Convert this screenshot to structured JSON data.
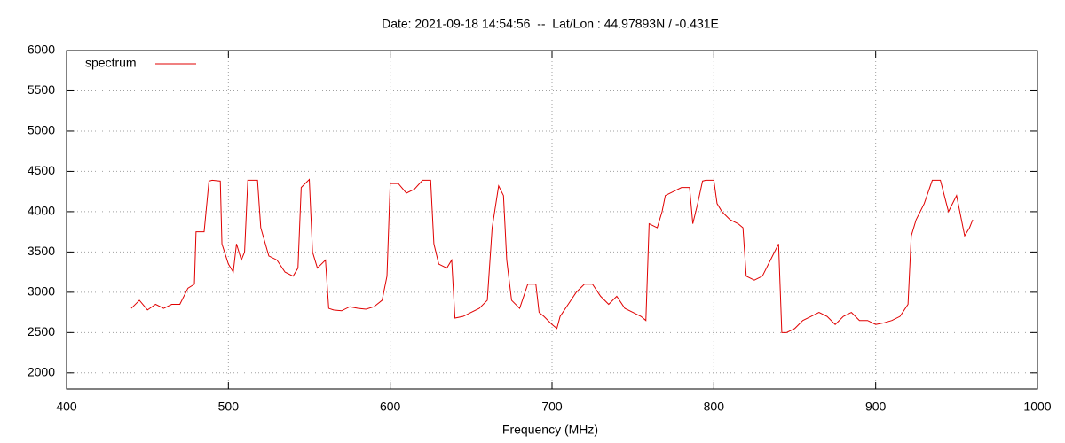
{
  "chart_data": {
    "type": "line",
    "title": "Date: 2021-09-18 14:54:56  --  Lat/Lon : 44.97893N / -0.431E",
    "xlabel": "Frequency (MHz)",
    "x": [
      440,
      445,
      450,
      455,
      460,
      465,
      470,
      475,
      479,
      480,
      485,
      488,
      490,
      495,
      496,
      500,
      503,
      505,
      508,
      510,
      512,
      515,
      518,
      520,
      525,
      530,
      535,
      540,
      543,
      545,
      550,
      552,
      555,
      560,
      562,
      565,
      570,
      575,
      580,
      585,
      590,
      595,
      598,
      600,
      605,
      610,
      615,
      620,
      625,
      627,
      630,
      635,
      638,
      640,
      645,
      650,
      655,
      660,
      663,
      667,
      670,
      672,
      675,
      680,
      685,
      690,
      692,
      695,
      700,
      703,
      705,
      710,
      715,
      720,
      725,
      730,
      735,
      740,
      745,
      750,
      755,
      758,
      760,
      765,
      768,
      770,
      775,
      780,
      785,
      787,
      790,
      793,
      795,
      800,
      802,
      805,
      810,
      815,
      818,
      820,
      825,
      830,
      835,
      840,
      842,
      845,
      850,
      855,
      860,
      865,
      870,
      875,
      880,
      885,
      890,
      895,
      900,
      905,
      910,
      915,
      920,
      922,
      925,
      930,
      935,
      940,
      945,
      950,
      955,
      958,
      960
    ],
    "series": [
      {
        "name": "spectrum",
        "color": "#e00000",
        "values": [
          2800,
          2900,
          2780,
          2850,
          2800,
          2850,
          2850,
          3050,
          3100,
          3750,
          3750,
          4380,
          4390,
          4380,
          3600,
          3350,
          3250,
          3600,
          3400,
          3500,
          4390,
          4390,
          4390,
          3800,
          3450,
          3400,
          3250,
          3200,
          3300,
          4300,
          4400,
          3500,
          3300,
          3400,
          2800,
          2780,
          2770,
          2820,
          2800,
          2790,
          2820,
          2900,
          3200,
          4350,
          4350,
          4230,
          4280,
          4390,
          4390,
          3600,
          3350,
          3300,
          3400,
          2680,
          2700,
          2750,
          2800,
          2900,
          3800,
          4320,
          4200,
          3400,
          2900,
          2800,
          3100,
          3100,
          2750,
          2700,
          2600,
          2550,
          2700,
          2850,
          3000,
          3100,
          3100,
          2950,
          2850,
          2950,
          2800,
          2750,
          2700,
          2650,
          3850,
          3800,
          4000,
          4200,
          4250,
          4300,
          4300,
          3850,
          4100,
          4380,
          4390,
          4390,
          4100,
          4000,
          3900,
          3850,
          3800,
          3200,
          3150,
          3200,
          3400,
          3600,
          2500,
          2500,
          2550,
          2650,
          2700,
          2750,
          2700,
          2600,
          2700,
          2750,
          2650,
          2650,
          2600,
          2620,
          2650,
          2700,
          2850,
          3700,
          3900,
          4100,
          4390,
          4390,
          4000,
          4200,
          3700,
          3800,
          3900
        ]
      }
    ],
    "xlim": [
      400,
      1000
    ],
    "xticks": [
      400,
      500,
      600,
      700,
      800,
      900,
      1000
    ],
    "ylim": [
      1800,
      6000
    ],
    "yticks": [
      2000,
      2500,
      3000,
      3500,
      4000,
      4500,
      5000,
      5500,
      6000
    ],
    "grid": true,
    "legend": "top-left"
  }
}
